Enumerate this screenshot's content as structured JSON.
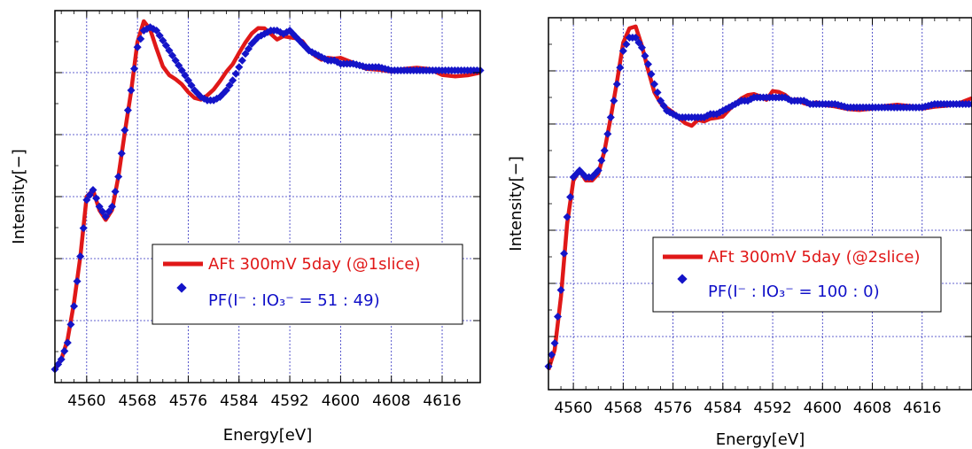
{
  "colors": {
    "red": "#e01818",
    "blue": "#1414c8",
    "grid": "#3030c0"
  },
  "chart_data": [
    {
      "type": "line",
      "xlabel": "Energy[eV]",
      "ylabel": "Intensity[−]",
      "xlim": [
        4555,
        4622
      ],
      "ylim": [
        0,
        1.12
      ],
      "xticks": [
        4560,
        4568,
        4576,
        4584,
        4592,
        4600,
        4608,
        4616
      ],
      "grid": true,
      "legend_position": "lower-right",
      "series": [
        {
          "name": "AFt 300mV 5day (@1slice)",
          "style": "line",
          "color": "#e01818",
          "x": [
            4555,
            4556,
            4557,
            4558,
            4559,
            4560,
            4561,
            4562,
            4563,
            4564,
            4565,
            4566,
            4567,
            4568,
            4569,
            4570,
            4571,
            4572,
            4573,
            4574,
            4575,
            4576,
            4577,
            4578,
            4579,
            4580,
            4581,
            4582,
            4583,
            4584,
            4585,
            4586,
            4587,
            4588,
            4589,
            4590,
            4591,
            4592,
            4593,
            4594,
            4595,
            4596,
            4597,
            4598,
            4599,
            4600,
            4602,
            4604,
            4606,
            4608,
            4610,
            4612,
            4614,
            4616,
            4618,
            4620,
            4622
          ],
          "y": [
            0.04,
            0.07,
            0.13,
            0.24,
            0.38,
            0.56,
            0.58,
            0.52,
            0.49,
            0.52,
            0.62,
            0.76,
            0.88,
            1.02,
            1.08,
            1.06,
            1.01,
            0.96,
            0.93,
            0.91,
            0.89,
            0.87,
            0.86,
            0.86,
            0.87,
            0.88,
            0.9,
            0.93,
            0.96,
            1.0,
            1.03,
            1.05,
            1.06,
            1.06,
            1.05,
            1.04,
            1.05,
            1.04,
            1.03,
            1.02,
            1.0,
            0.99,
            0.98,
            0.98,
            0.97,
            0.97,
            0.96,
            0.95,
            0.95,
            0.94,
            0.94,
            0.94,
            0.94,
            0.93,
            0.93,
            0.93,
            0.93
          ]
        },
        {
          "name": "PF(I⁻ : IO₃⁻ = 51 : 49)",
          "style": "markers",
          "color": "#1414c8",
          "x": [
            4555,
            4556,
            4557,
            4558,
            4559,
            4560,
            4561,
            4562,
            4563,
            4564,
            4565,
            4566,
            4567,
            4568,
            4569,
            4570,
            4571,
            4572,
            4573,
            4574,
            4575,
            4576,
            4577,
            4578,
            4579,
            4580,
            4581,
            4582,
            4583,
            4584,
            4585,
            4586,
            4587,
            4588,
            4589,
            4590,
            4591,
            4592,
            4593,
            4594,
            4595,
            4596,
            4597,
            4598,
            4599,
            4600,
            4602,
            4604,
            4606,
            4608,
            4610,
            4612,
            4614,
            4616,
            4618,
            4620,
            4622
          ],
          "y": [
            0.04,
            0.07,
            0.12,
            0.23,
            0.38,
            0.55,
            0.58,
            0.53,
            0.5,
            0.53,
            0.62,
            0.76,
            0.88,
            1.01,
            1.06,
            1.07,
            1.06,
            1.03,
            1.0,
            0.97,
            0.94,
            0.91,
            0.88,
            0.86,
            0.85,
            0.85,
            0.86,
            0.88,
            0.91,
            0.95,
            0.99,
            1.02,
            1.04,
            1.05,
            1.06,
            1.06,
            1.05,
            1.06,
            1.04,
            1.02,
            1.0,
            0.99,
            0.98,
            0.97,
            0.97,
            0.96,
            0.96,
            0.95,
            0.95,
            0.94,
            0.94,
            0.94,
            0.94,
            0.94,
            0.94,
            0.94,
            0.94
          ]
        }
      ]
    },
    {
      "type": "line",
      "xlabel": "Energy[eV]",
      "ylabel": "Intensity[−]",
      "xlim": [
        4556,
        4624
      ],
      "ylim": [
        0,
        1.12
      ],
      "xticks": [
        4560,
        4568,
        4576,
        4584,
        4592,
        4600,
        4608,
        4616
      ],
      "grid": true,
      "legend_position": "lower-right",
      "series": [
        {
          "name": "AFt 300mV 5day (@2slice)",
          "style": "line",
          "color": "#e01818",
          "x": [
            4556,
            4557,
            4558,
            4559,
            4560,
            4561,
            4562,
            4563,
            4564,
            4565,
            4566,
            4567,
            4568,
            4569,
            4570,
            4571,
            4572,
            4573,
            4574,
            4575,
            4576,
            4577,
            4578,
            4579,
            4580,
            4581,
            4582,
            4583,
            4584,
            4585,
            4586,
            4587,
            4588,
            4589,
            4590,
            4591,
            4592,
            4593,
            4594,
            4595,
            4596,
            4597,
            4598,
            4599,
            4600,
            4602,
            4604,
            4606,
            4608,
            4610,
            4612,
            4614,
            4616,
            4618,
            4620,
            4622,
            4624
          ],
          "y": [
            0.06,
            0.12,
            0.28,
            0.5,
            0.63,
            0.66,
            0.63,
            0.63,
            0.65,
            0.72,
            0.82,
            0.93,
            1.04,
            1.08,
            1.09,
            1.04,
            0.97,
            0.9,
            0.86,
            0.84,
            0.83,
            0.82,
            0.81,
            0.8,
            0.81,
            0.8,
            0.81,
            0.82,
            0.83,
            0.85,
            0.86,
            0.87,
            0.88,
            0.89,
            0.89,
            0.88,
            0.9,
            0.89,
            0.88,
            0.87,
            0.88,
            0.87,
            0.86,
            0.86,
            0.85,
            0.85,
            0.85,
            0.85,
            0.85,
            0.85,
            0.85,
            0.85,
            0.85,
            0.86,
            0.86,
            0.86,
            0.87
          ]
        },
        {
          "name": "PF(I⁻ : IO₃⁻ = 100 : 0)",
          "style": "markers",
          "color": "#1414c8",
          "x": [
            4556,
            4557,
            4558,
            4559,
            4560,
            4561,
            4562,
            4563,
            4564,
            4565,
            4566,
            4567,
            4568,
            4569,
            4570,
            4571,
            4572,
            4573,
            4574,
            4575,
            4576,
            4577,
            4578,
            4579,
            4580,
            4581,
            4582,
            4583,
            4584,
            4585,
            4586,
            4587,
            4588,
            4589,
            4590,
            4591,
            4592,
            4593,
            4594,
            4595,
            4596,
            4597,
            4598,
            4599,
            4600,
            4602,
            4604,
            4606,
            4608,
            4610,
            4612,
            4614,
            4616,
            4618,
            4620,
            4622,
            4624
          ],
          "y": [
            0.07,
            0.14,
            0.3,
            0.52,
            0.64,
            0.66,
            0.64,
            0.64,
            0.66,
            0.72,
            0.82,
            0.92,
            1.02,
            1.06,
            1.06,
            1.03,
            0.98,
            0.92,
            0.87,
            0.84,
            0.83,
            0.82,
            0.82,
            0.82,
            0.82,
            0.82,
            0.83,
            0.83,
            0.84,
            0.85,
            0.86,
            0.87,
            0.87,
            0.88,
            0.88,
            0.88,
            0.88,
            0.88,
            0.88,
            0.87,
            0.87,
            0.87,
            0.86,
            0.86,
            0.86,
            0.86,
            0.85,
            0.85,
            0.85,
            0.85,
            0.85,
            0.85,
            0.85,
            0.86,
            0.86,
            0.86,
            0.86
          ]
        }
      ]
    }
  ]
}
